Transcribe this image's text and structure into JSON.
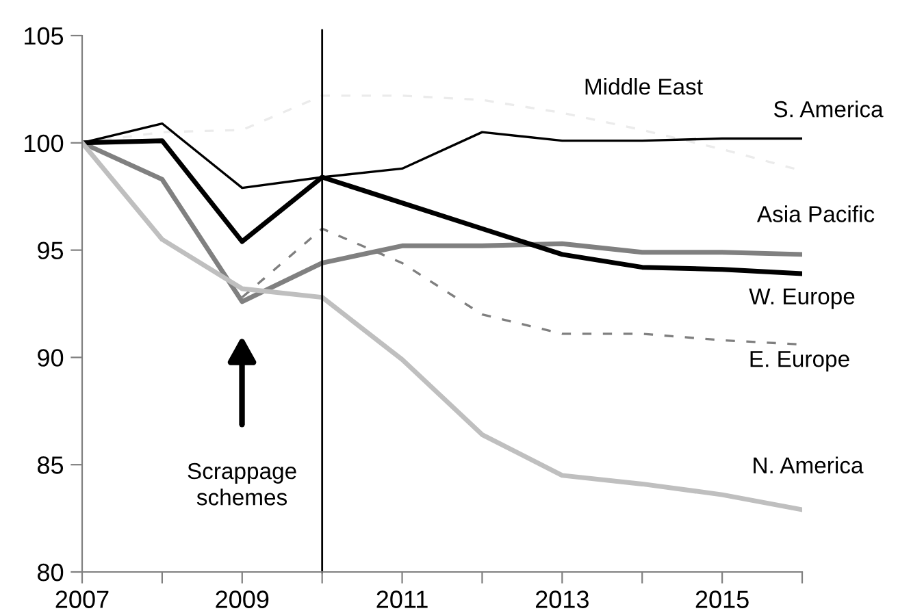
{
  "chart_data": {
    "type": "line",
    "x": [
      2007,
      2008,
      2009,
      2010,
      2011,
      2012,
      2013,
      2014,
      2015,
      2016
    ],
    "series": [
      {
        "name": "Middle East",
        "color": "#ebebeb",
        "line_style": "dashed",
        "values": [
          100,
          100.5,
          100.6,
          102.2,
          102.2,
          102.0,
          101.4,
          100.6,
          99.7,
          98.7
        ]
      },
      {
        "name": "S. America",
        "color": "#000000",
        "values": [
          100,
          100.9,
          97.9,
          98.4,
          98.8,
          100.5,
          100.1,
          100.1,
          100.2,
          100.2
        ]
      },
      {
        "name": "Asia Pacific",
        "color": "#808080",
        "values": [
          100,
          98.3,
          92.6,
          94.4,
          95.2,
          95.2,
          95.3,
          94.9,
          94.9,
          94.8
        ]
      },
      {
        "name": "W. Europe",
        "color": "#000000",
        "values": [
          100,
          100.1,
          95.4,
          98.4,
          97.2,
          96.0,
          94.8,
          94.2,
          94.1,
          93.9
        ]
      },
      {
        "name": "E. Europe",
        "color": "#7f7f7f",
        "line_style": "dashed",
        "values": [
          null,
          null,
          92.8,
          96.0,
          94.4,
          92.0,
          91.1,
          91.1,
          90.8,
          90.6
        ]
      },
      {
        "name": "N. America",
        "color": "#bfbfbf",
        "values": [
          100,
          95.5,
          93.2,
          92.8,
          89.9,
          86.4,
          84.5,
          84.1,
          83.6,
          82.9
        ]
      }
    ],
    "xlim": [
      2007,
      2016
    ],
    "xticks": [
      2007,
      {
        "value": 2008,
        "label": null
      },
      2009,
      {
        "value": 2010,
        "label": null
      },
      2011,
      {
        "value": 2012,
        "label": null
      },
      2013,
      {
        "value": 2014,
        "label": null
      },
      2015,
      {
        "value": 2016,
        "label": null
      }
    ],
    "ylim": [
      80,
      105
    ],
    "yticks": [
      80,
      85,
      90,
      95,
      100,
      105
    ],
    "ref_lines": [
      {
        "axis": "x",
        "value": 2010,
        "color": "#000000"
      }
    ],
    "annotations": [
      "Scrappage\nschemes"
    ],
    "grid": false,
    "legend": false,
    "marker": "none",
    "line_style": "solid"
  }
}
